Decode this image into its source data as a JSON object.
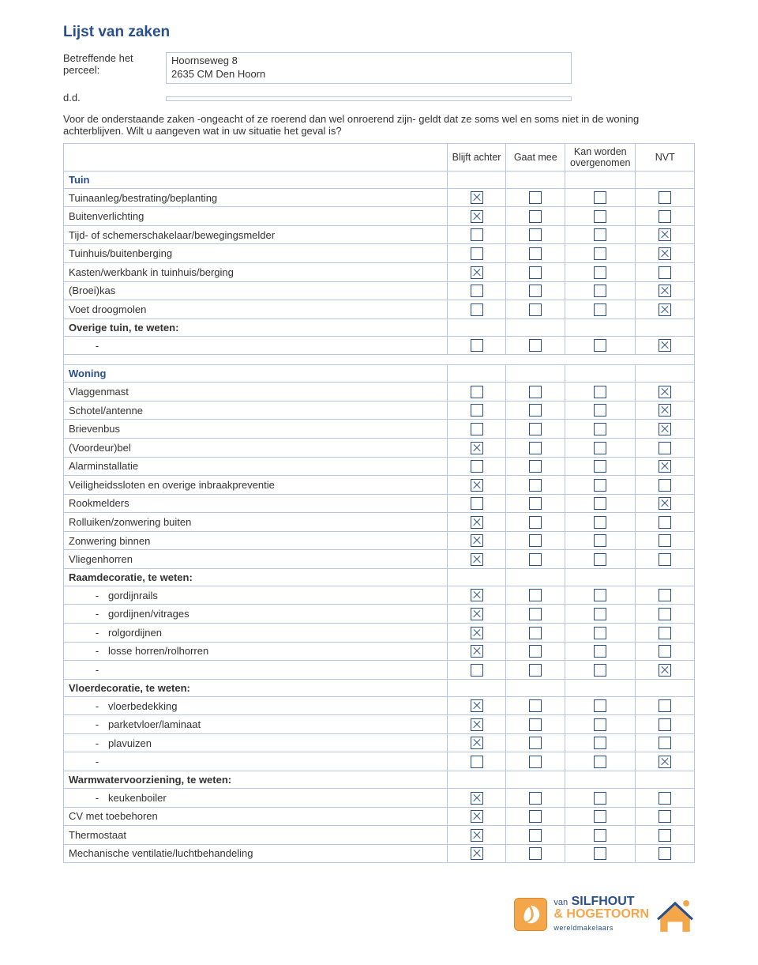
{
  "title": "Lijst van zaken",
  "intro": {
    "perceel_label": "Betreffende het perceel:",
    "perceel_value": "Hoornseweg 8\n2635 CM  Den Hoorn",
    "dd_label": "d.d.",
    "dd_value": "",
    "explain": "Voor de onderstaande zaken -ongeacht of ze roerend dan wel onroerend zijn- geldt dat ze soms wel en soms niet in de woning achterblijven. Wilt u aangeven wat in uw situatie het geval is?"
  },
  "headers": {
    "item": "",
    "c1": "Blijft achter",
    "c2": "Gaat mee",
    "c3": "Kan worden overgenomen",
    "c4": "NVT"
  },
  "sections": [
    {
      "title": "Tuin",
      "rows": [
        {
          "label": "Tuinaanleg/bestrating/beplanting",
          "v": [
            1,
            0,
            0,
            0
          ]
        },
        {
          "label": "Buitenverlichting",
          "v": [
            1,
            0,
            0,
            0
          ]
        },
        {
          "label": "Tijd- of schemerschakelaar/bewegingsmelder",
          "v": [
            0,
            0,
            0,
            1
          ]
        },
        {
          "label": "Tuinhuis/buitenberging",
          "v": [
            0,
            0,
            0,
            1
          ]
        },
        {
          "label": "Kasten/werkbank in tuinhuis/berging",
          "v": [
            1,
            0,
            0,
            0
          ]
        },
        {
          "label": "(Broei)kas",
          "v": [
            0,
            0,
            0,
            1
          ]
        },
        {
          "label": "Voet droogmolen",
          "v": [
            0,
            0,
            0,
            1
          ]
        },
        {
          "label": "Overige tuin, te weten:",
          "sub": true
        },
        {
          "label": "",
          "dash": true,
          "v": [
            0,
            0,
            0,
            1
          ]
        }
      ]
    },
    {
      "title": "Woning",
      "rows": [
        {
          "label": "Vlaggenmast",
          "v": [
            0,
            0,
            0,
            1
          ]
        },
        {
          "label": "Schotel/antenne",
          "v": [
            0,
            0,
            0,
            1
          ]
        },
        {
          "label": "Brievenbus",
          "v": [
            0,
            0,
            0,
            1
          ]
        },
        {
          "label": "(Voordeur)bel",
          "v": [
            1,
            0,
            0,
            0
          ]
        },
        {
          "label": "Alarminstallatie",
          "v": [
            0,
            0,
            0,
            1
          ]
        },
        {
          "label": "Veiligheidssloten en overige inbraakpreventie",
          "v": [
            1,
            0,
            0,
            0
          ]
        },
        {
          "label": "Rookmelders",
          "v": [
            0,
            0,
            0,
            1
          ]
        },
        {
          "label": "Rolluiken/zonwering buiten",
          "v": [
            1,
            0,
            0,
            0
          ]
        },
        {
          "label": "Zonwering binnen",
          "v": [
            1,
            0,
            0,
            0
          ]
        },
        {
          "label": "Vliegenhorren",
          "v": [
            1,
            0,
            0,
            0
          ]
        },
        {
          "label": "Raamdecoratie, te weten:",
          "sub": true
        },
        {
          "label": "gordijnrails",
          "dash": true,
          "v": [
            1,
            0,
            0,
            0
          ]
        },
        {
          "label": "gordijnen/vitrages",
          "dash": true,
          "v": [
            1,
            0,
            0,
            0
          ]
        },
        {
          "label": "rolgordijnen",
          "dash": true,
          "v": [
            1,
            0,
            0,
            0
          ]
        },
        {
          "label": "losse horren/rolhorren",
          "dash": true,
          "v": [
            1,
            0,
            0,
            0
          ]
        },
        {
          "label": "",
          "dash": true,
          "v": [
            0,
            0,
            0,
            1
          ]
        },
        {
          "label": "Vloerdecoratie, te weten:",
          "sub": true
        },
        {
          "label": "vloerbedekking",
          "dash": true,
          "v": [
            1,
            0,
            0,
            0
          ]
        },
        {
          "label": "parketvloer/laminaat",
          "dash": true,
          "v": [
            1,
            0,
            0,
            0
          ]
        },
        {
          "label": "plavuizen",
          "dash": true,
          "v": [
            1,
            0,
            0,
            0
          ]
        },
        {
          "label": "",
          "dash": true,
          "v": [
            0,
            0,
            0,
            1
          ]
        },
        {
          "label": "Warmwatervoorziening, te weten:",
          "sub": true
        },
        {
          "label": "keukenboiler",
          "dash": true,
          "v": [
            1,
            0,
            0,
            0
          ]
        },
        {
          "label": "CV met toebehoren",
          "v": [
            1,
            0,
            0,
            0
          ]
        },
        {
          "label": "Thermostaat",
          "v": [
            1,
            0,
            0,
            0
          ]
        },
        {
          "label": "Mechanische ventilatie/luchtbehandeling",
          "v": [
            1,
            0,
            0,
            0
          ]
        }
      ]
    }
  ],
  "logo": {
    "van": "van",
    "name1": "SILFHOUT",
    "amp": "&",
    "name2": "HOGETOORN",
    "tag": "wereldmakelaars"
  }
}
